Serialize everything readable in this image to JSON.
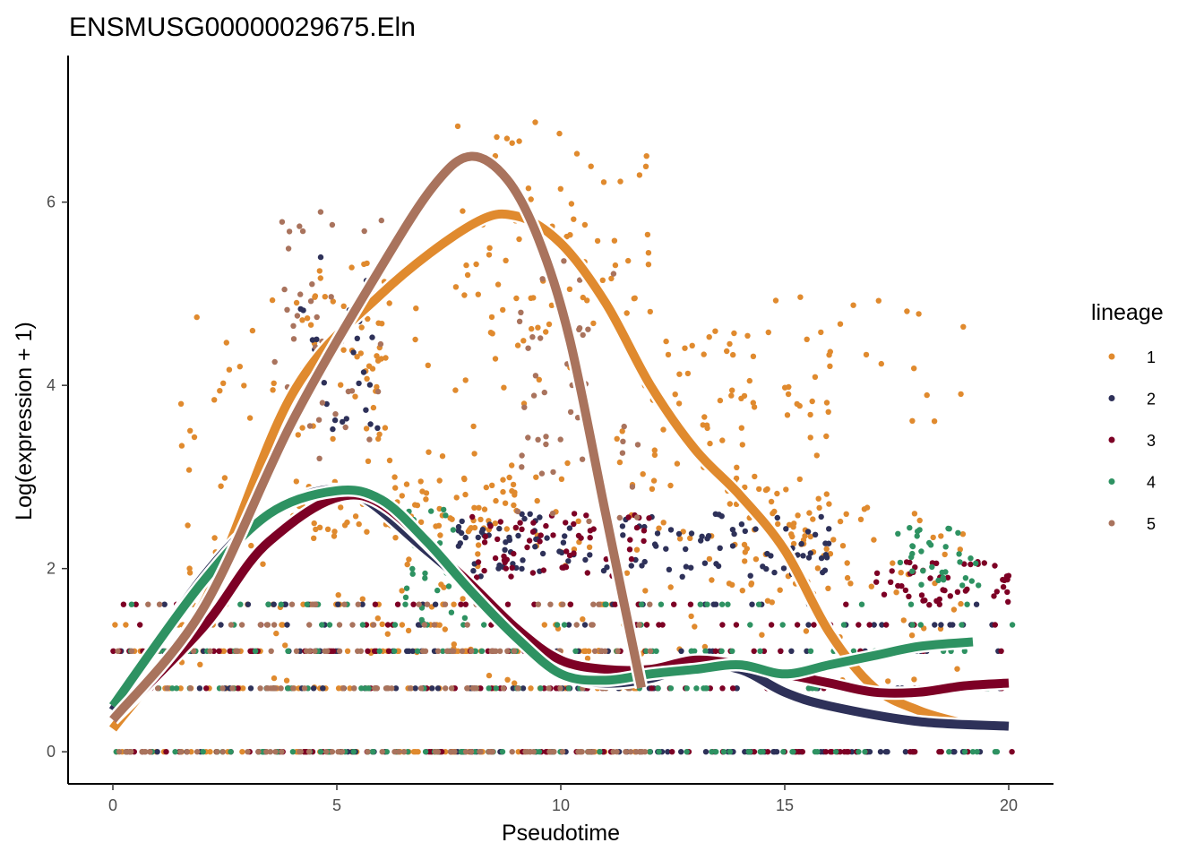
{
  "chart_data": {
    "type": "scatter",
    "title": "ENSMUSG00000029675.Eln",
    "xlabel": "Pseudotime",
    "ylabel": "Log(expression + 1)",
    "xlim": [
      -1,
      21
    ],
    "ylim": [
      -0.35,
      7.6
    ],
    "x_ticks": [
      0,
      5,
      10,
      15,
      20
    ],
    "y_ticks": [
      0,
      2,
      4,
      6
    ],
    "grid": false,
    "legend": {
      "title": "lineage",
      "position": "right",
      "entries": [
        {
          "label": "1",
          "color": "#E08A2E"
        },
        {
          "label": "2",
          "color": "#2E3159"
        },
        {
          "label": "3",
          "color": "#7D0025"
        },
        {
          "label": "4",
          "color": "#2E9262"
        },
        {
          "label": "5",
          "color": "#A9735D"
        }
      ]
    },
    "series": [
      {
        "name": "1",
        "color": "#E08A2E",
        "curve": [
          [
            0,
            0.25
          ],
          [
            2,
            1.6
          ],
          [
            4,
            3.9
          ],
          [
            6,
            5.0
          ],
          [
            8,
            5.75
          ],
          [
            9,
            5.85
          ],
          [
            10,
            5.55
          ],
          [
            11,
            4.9
          ],
          [
            12,
            4.0
          ],
          [
            13,
            3.3
          ],
          [
            14,
            2.8
          ],
          [
            15,
            2.2
          ],
          [
            16,
            1.3
          ],
          [
            17,
            0.7
          ],
          [
            18,
            0.45
          ],
          [
            18.9,
            0.32
          ]
        ],
        "clusters": [
          [
            0,
            12,
            0,
            5
          ],
          [
            1.5,
            19,
            0.7,
            5
          ],
          [
            3.8,
            6.2,
            3.4,
            5.4
          ],
          [
            7.6,
            12,
            4.5,
            6.9
          ],
          [
            12,
            16,
            2.3,
            4.6
          ],
          [
            13.5,
            16.5,
            1.7,
            2.9
          ],
          [
            4,
            9,
            2.3,
            3.0
          ]
        ]
      },
      {
        "name": "2",
        "color": "#2E3159",
        "curve": [
          [
            0,
            0.45
          ],
          [
            2,
            1.9
          ],
          [
            3.5,
            2.6
          ],
          [
            5.2,
            2.85
          ],
          [
            7,
            2.2
          ],
          [
            9,
            1.35
          ],
          [
            10.2,
            0.85
          ],
          [
            11,
            0.75
          ],
          [
            12,
            0.8
          ],
          [
            13,
            0.95
          ],
          [
            14,
            0.9
          ],
          [
            15,
            0.65
          ],
          [
            16,
            0.5
          ],
          [
            18,
            0.33
          ],
          [
            20,
            0.28
          ]
        ],
        "clusters": [
          [
            0,
            20.1,
            0,
            5
          ],
          [
            4,
            6,
            3.5,
            5.6
          ],
          [
            7.5,
            16,
            1.9,
            2.6
          ]
        ]
      },
      {
        "name": "3",
        "color": "#7D0025",
        "curve": [
          [
            0,
            0.35
          ],
          [
            2,
            1.35
          ],
          [
            3.5,
            2.3
          ],
          [
            5.5,
            2.8
          ],
          [
            7.5,
            2.05
          ],
          [
            9,
            1.35
          ],
          [
            10,
            1.0
          ],
          [
            11,
            0.9
          ],
          [
            12,
            0.9
          ],
          [
            13,
            1.0
          ],
          [
            14,
            0.95
          ],
          [
            15,
            0.85
          ],
          [
            16,
            0.75
          ],
          [
            17,
            0.65
          ],
          [
            18,
            0.65
          ],
          [
            19,
            0.72
          ],
          [
            20,
            0.75
          ]
        ],
        "clusters": [
          [
            0,
            20.1,
            0,
            5
          ],
          [
            8,
            12,
            1.9,
            2.6
          ],
          [
            17,
            20,
            1.6,
            2.1
          ]
        ]
      },
      {
        "name": "4",
        "color": "#2E9262",
        "curve": [
          [
            0,
            0.5
          ],
          [
            2,
            1.85
          ],
          [
            3.5,
            2.6
          ],
          [
            5,
            2.85
          ],
          [
            6,
            2.75
          ],
          [
            7,
            2.3
          ],
          [
            8,
            1.75
          ],
          [
            9,
            1.25
          ],
          [
            10,
            0.85
          ],
          [
            11,
            0.78
          ],
          [
            12,
            0.85
          ],
          [
            13,
            0.9
          ],
          [
            14,
            0.95
          ],
          [
            15,
            0.85
          ],
          [
            16,
            0.95
          ],
          [
            17,
            1.05
          ],
          [
            18,
            1.15
          ],
          [
            19.2,
            1.2
          ]
        ],
        "clusters": [
          [
            0,
            20.1,
            0,
            5
          ],
          [
            6.5,
            8,
            1.4,
            2.7
          ],
          [
            17.5,
            19.5,
            1.8,
            2.5
          ]
        ]
      },
      {
        "name": "5",
        "color": "#A9735D",
        "curve": [
          [
            0,
            0.35
          ],
          [
            2,
            1.55
          ],
          [
            4,
            3.6
          ],
          [
            6,
            5.3
          ],
          [
            7.2,
            6.2
          ],
          [
            8,
            6.5
          ],
          [
            8.8,
            6.25
          ],
          [
            9.5,
            5.6
          ],
          [
            10.2,
            4.5
          ],
          [
            11,
            2.6
          ],
          [
            11.8,
            0.7
          ]
        ],
        "clusters": [
          [
            0,
            12,
            0,
            5
          ],
          [
            3.6,
            6,
            3.2,
            5.9
          ],
          [
            9,
            11.8,
            2.5,
            5.7
          ]
        ]
      }
    ],
    "baseline_levels": [
      0,
      0.693,
      1.099,
      1.386,
      1.609
    ]
  }
}
